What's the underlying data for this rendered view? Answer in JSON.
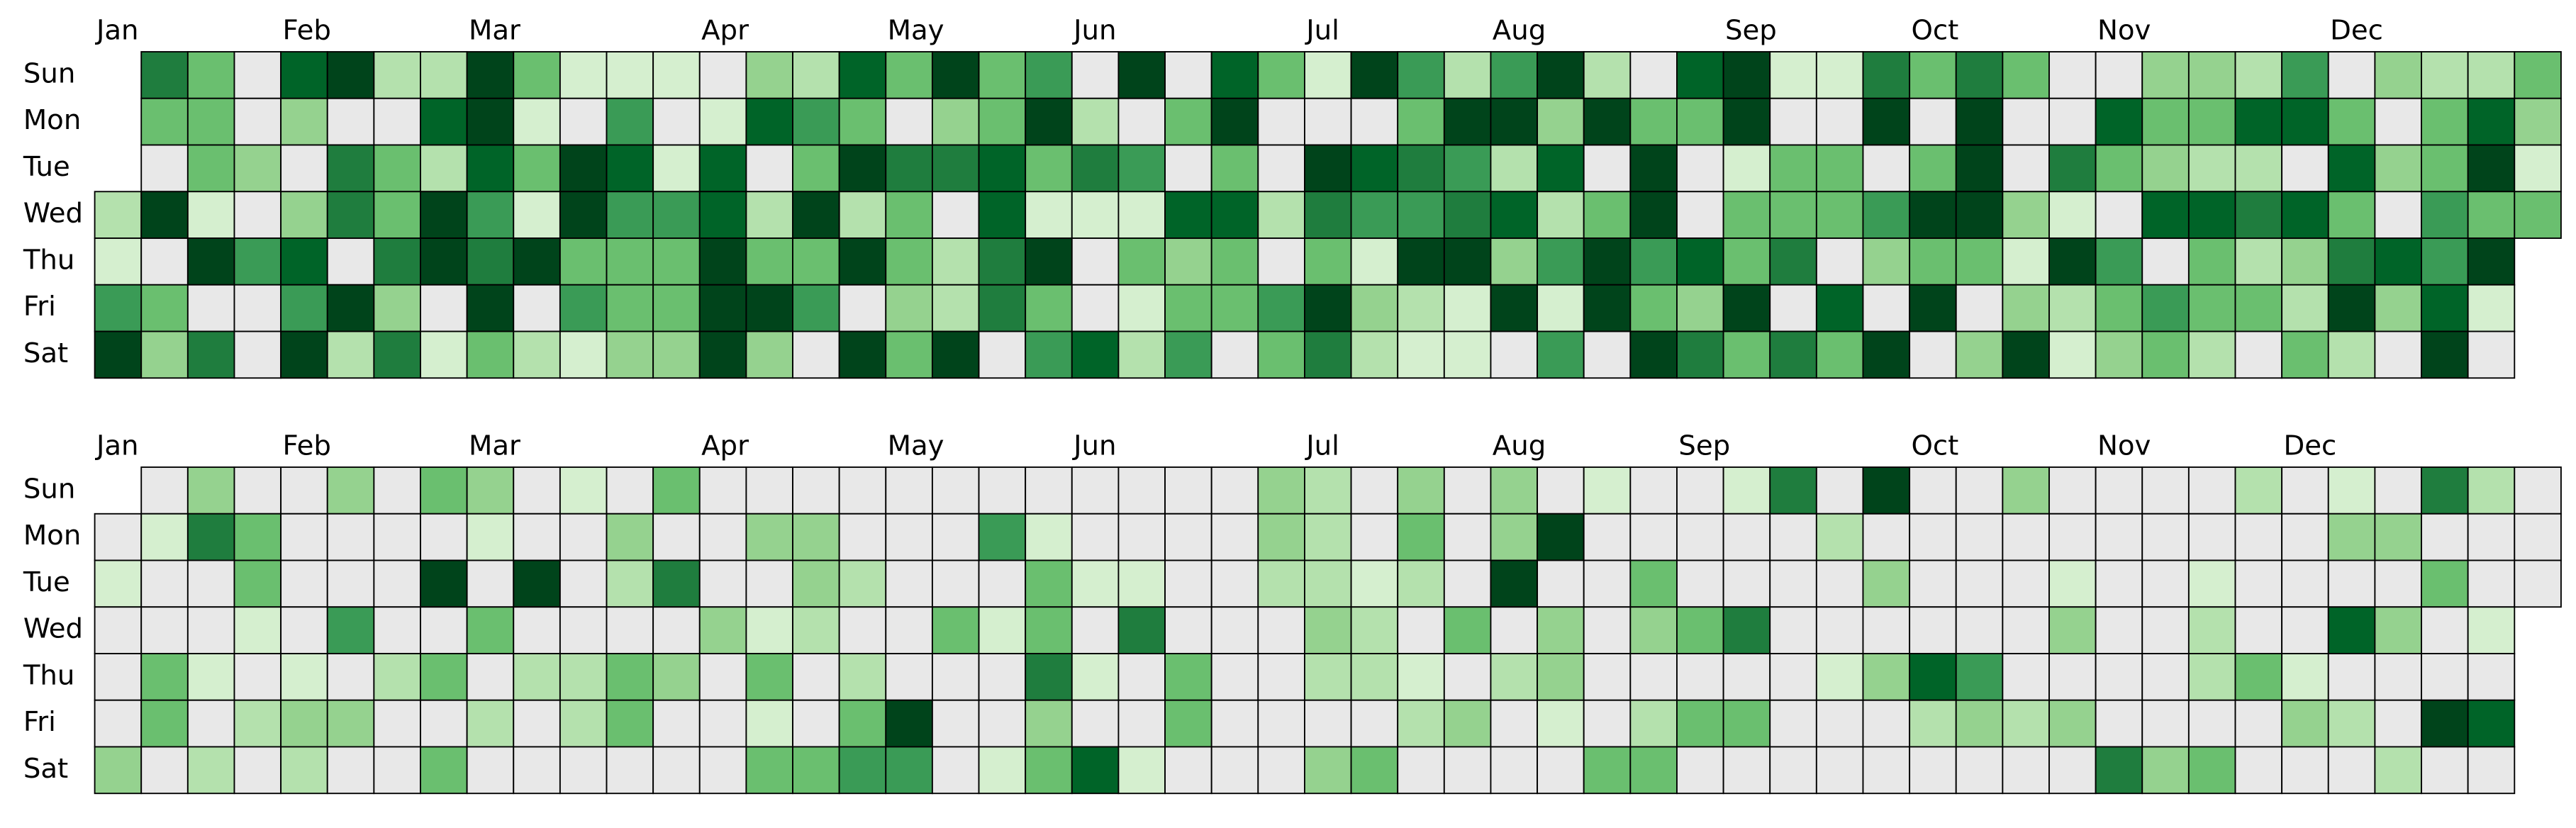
{
  "chart_data": [
    {
      "type": "calendar-heatmap",
      "colors": [
        "#e8e8e8",
        "#d5efcf",
        "#b4e1ad",
        "#95d28f",
        "#6abf6f",
        "#3a9b56",
        "#1f7d3e",
        "#006428",
        "#00441b"
      ],
      "rows": [
        "Sun",
        "Mon",
        "Tue",
        "Wed",
        "Thu",
        "Fri",
        "Sat"
      ],
      "months": [
        "Jan",
        "Feb",
        "Mar",
        "Apr",
        "May",
        "Jun",
        "Jul",
        "Aug",
        "Sep",
        "Oct",
        "Nov",
        "Dec"
      ],
      "values": [
        [
          null,
          6,
          4,
          0,
          7,
          8,
          2,
          2,
          8,
          4,
          1,
          1,
          1,
          0,
          3,
          2,
          7,
          4,
          8,
          4,
          5,
          0,
          8,
          0,
          7,
          4,
          1,
          8,
          5,
          2,
          5,
          8,
          2,
          0,
          7,
          8,
          1,
          1,
          6,
          4,
          6,
          4,
          0,
          0,
          3,
          3,
          2,
          5,
          0,
          3,
          2,
          2,
          4
        ],
        [
          null,
          4,
          4,
          0,
          3,
          0,
          0,
          7,
          8,
          1,
          0,
          5,
          0,
          1,
          7,
          5,
          4,
          0,
          3,
          4,
          8,
          2,
          0,
          4,
          8,
          0,
          0,
          0,
          4,
          8,
          8,
          3,
          8,
          4,
          4,
          8,
          0,
          0,
          8,
          0,
          8,
          0,
          0,
          7,
          4,
          4,
          7,
          7,
          4,
          0,
          4,
          7,
          3
        ],
        [
          null,
          0,
          4,
          3,
          0,
          6,
          4,
          2,
          7,
          4,
          8,
          7,
          1,
          7,
          0,
          4,
          8,
          6,
          6,
          7,
          4,
          6,
          5,
          0,
          4,
          0,
          8,
          7,
          6,
          5,
          2,
          7,
          0,
          8,
          0,
          1,
          4,
          4,
          0,
          4,
          8,
          0,
          6,
          4,
          3,
          2,
          2,
          0,
          7,
          3,
          4,
          8,
          1
        ],
        [
          2,
          8,
          1,
          0,
          3,
          6,
          4,
          8,
          5,
          1,
          8,
          5,
          5,
          7,
          2,
          8,
          2,
          4,
          0,
          7,
          1,
          1,
          1,
          7,
          7,
          2,
          6,
          5,
          5,
          6,
          7,
          2,
          4,
          8,
          0,
          4,
          4,
          4,
          5,
          8,
          8,
          3,
          1,
          0,
          7,
          7,
          6,
          7,
          4,
          0,
          5,
          4,
          4
        ],
        [
          1,
          0,
          8,
          5,
          7,
          0,
          6,
          8,
          6,
          8,
          4,
          4,
          4,
          8,
          4,
          4,
          8,
          4,
          2,
          6,
          8,
          0,
          4,
          3,
          4,
          0,
          4,
          1,
          8,
          8,
          3,
          5,
          8,
          5,
          7,
          4,
          6,
          0,
          3,
          4,
          4,
          1,
          8,
          5,
          0,
          4,
          2,
          3,
          6,
          7,
          5,
          8,
          null
        ],
        [
          5,
          4,
          0,
          0,
          5,
          8,
          3,
          0,
          8,
          0,
          5,
          4,
          4,
          8,
          8,
          5,
          0,
          3,
          2,
          6,
          4,
          0,
          1,
          4,
          4,
          5,
          8,
          3,
          2,
          1,
          8,
          1,
          8,
          4,
          3,
          8,
          0,
          7,
          0,
          8,
          0,
          3,
          2,
          4,
          5,
          4,
          4,
          2,
          8,
          3,
          7,
          1,
          null
        ],
        [
          8,
          3,
          6,
          0,
          8,
          2,
          6,
          1,
          4,
          2,
          1,
          3,
          3,
          8,
          3,
          0,
          8,
          4,
          8,
          0,
          5,
          7,
          2,
          5,
          0,
          4,
          6,
          2,
          1,
          1,
          0,
          5,
          0,
          8,
          6,
          4,
          6,
          4,
          8,
          0,
          3,
          8,
          1,
          3,
          4,
          2,
          0,
          4,
          2,
          0,
          8,
          0,
          null
        ]
      ]
    },
    {
      "type": "calendar-heatmap",
      "colors": [
        "#e8e8e8",
        "#d5efcf",
        "#b4e1ad",
        "#95d28f",
        "#6abf6f",
        "#3a9b56",
        "#1f7d3e",
        "#006428",
        "#00441b"
      ],
      "rows": [
        "Sun",
        "Mon",
        "Tue",
        "Wed",
        "Thu",
        "Fri",
        "Sat"
      ],
      "months": [
        "Jan",
        "Feb",
        "Mar",
        "Apr",
        "May",
        "Jun",
        "Jul",
        "Aug",
        "Sep",
        "Oct",
        "Nov",
        "Dec"
      ],
      "values": [
        [
          null,
          0,
          3,
          0,
          0,
          3,
          0,
          4,
          3,
          0,
          1,
          0,
          4,
          0,
          0,
          0,
          0,
          0,
          0,
          0,
          0,
          0,
          0,
          0,
          0,
          3,
          2,
          0,
          3,
          0,
          3,
          0,
          1,
          0,
          0,
          1,
          6,
          0,
          8,
          0,
          0,
          3,
          0,
          0,
          0,
          0,
          2,
          0,
          1,
          0,
          6,
          2,
          0
        ],
        [
          0,
          1,
          6,
          4,
          0,
          0,
          0,
          0,
          1,
          0,
          0,
          3,
          0,
          0,
          3,
          3,
          0,
          0,
          0,
          5,
          1,
          0,
          0,
          0,
          0,
          3,
          2,
          0,
          4,
          0,
          3,
          8,
          0,
          0,
          0,
          0,
          0,
          2,
          0,
          0,
          0,
          0,
          0,
          0,
          0,
          0,
          0,
          0,
          3,
          3,
          0,
          0,
          0
        ],
        [
          1,
          0,
          0,
          4,
          0,
          0,
          0,
          8,
          0,
          8,
          0,
          2,
          6,
          0,
          0,
          3,
          2,
          0,
          0,
          0,
          4,
          1,
          1,
          0,
          0,
          2,
          2,
          1,
          2,
          0,
          8,
          0,
          0,
          4,
          0,
          0,
          0,
          0,
          3,
          0,
          0,
          0,
          1,
          0,
          0,
          1,
          0,
          0,
          0,
          0,
          4,
          0,
          0
        ],
        [
          0,
          0,
          0,
          1,
          0,
          5,
          0,
          0,
          4,
          0,
          0,
          0,
          0,
          3,
          1,
          2,
          0,
          0,
          4,
          1,
          4,
          0,
          6,
          0,
          0,
          0,
          3,
          2,
          0,
          4,
          0,
          3,
          0,
          3,
          4,
          6,
          0,
          0,
          0,
          0,
          0,
          0,
          3,
          0,
          0,
          2,
          0,
          0,
          7,
          3,
          0,
          1,
          null
        ],
        [
          0,
          4,
          1,
          0,
          1,
          0,
          2,
          4,
          0,
          2,
          2,
          4,
          3,
          0,
          4,
          0,
          2,
          0,
          0,
          0,
          6,
          1,
          0,
          4,
          0,
          0,
          2,
          2,
          1,
          0,
          2,
          3,
          0,
          0,
          0,
          0,
          0,
          1,
          3,
          7,
          5,
          0,
          0,
          0,
          0,
          2,
          4,
          1,
          0,
          0,
          0,
          0,
          null
        ],
        [
          0,
          4,
          0,
          2,
          3,
          3,
          0,
          0,
          2,
          0,
          2,
          4,
          0,
          0,
          1,
          0,
          4,
          8,
          0,
          0,
          3,
          0,
          0,
          4,
          0,
          0,
          0,
          0,
          2,
          3,
          0,
          1,
          0,
          2,
          4,
          4,
          0,
          0,
          0,
          2,
          3,
          2,
          3,
          0,
          0,
          0,
          0,
          3,
          2,
          0,
          8,
          7,
          null
        ],
        [
          3,
          0,
          2,
          0,
          2,
          0,
          0,
          4,
          0,
          0,
          0,
          0,
          0,
          0,
          4,
          4,
          5,
          5,
          0,
          1,
          4,
          7,
          1,
          0,
          0,
          0,
          3,
          4,
          0,
          0,
          0,
          0,
          4,
          4,
          0,
          0,
          0,
          0,
          0,
          0,
          0,
          0,
          0,
          6,
          3,
          4,
          0,
          0,
          0,
          2,
          0,
          0,
          null
        ]
      ]
    }
  ]
}
